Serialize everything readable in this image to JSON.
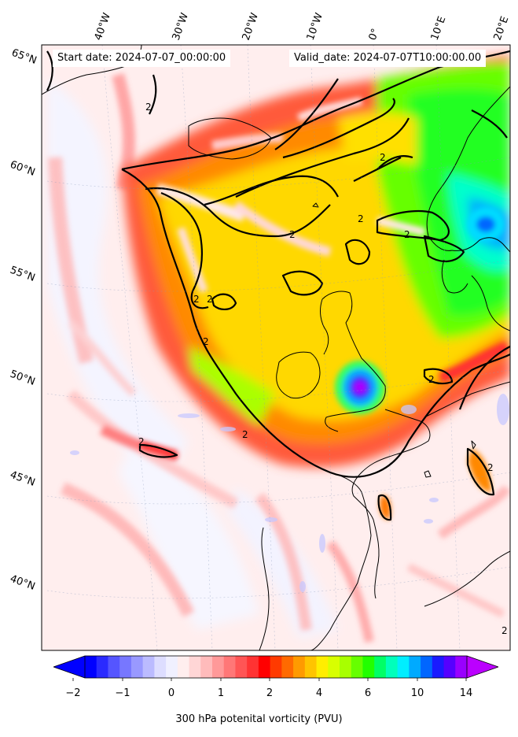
{
  "header": {
    "start_date": "Start date: 2024-07-07_00:00:00",
    "valid_date": "Valid_date: 2024-07-07T10:00:00.00"
  },
  "map": {
    "lon_labels": [
      "40°W",
      "30°W",
      "20°W",
      "10°W",
      "0°",
      "10°E",
      "20°E"
    ],
    "lat_labels": [
      "65°N",
      "60°N",
      "55°N",
      "50°N",
      "45°N",
      "40°N"
    ],
    "contour_level_label": "2"
  },
  "colorbar": {
    "title": "300 hPa potenital vorticity (PVU)",
    "tick_labels": [
      "−2",
      "−1",
      "0",
      "1",
      "2",
      "4",
      "6",
      "10",
      "14"
    ],
    "colors": [
      "#0000ff",
      "#2a2aff",
      "#5555ff",
      "#7777ff",
      "#9999ff",
      "#bbbbff",
      "#ddddff",
      "#f0f0ff",
      "#ffeeee",
      "#ffd6d6",
      "#ffbbbb",
      "#ff9999",
      "#ff7777",
      "#ff5555",
      "#ff3333",
      "#ff0000",
      "#ff3a00",
      "#ff6a00",
      "#ff9a00",
      "#ffc400",
      "#ffee00",
      "#d8ff00",
      "#a8ff00",
      "#66ff00",
      "#22ff00",
      "#00ff66",
      "#00ffbb",
      "#00eeff",
      "#00aaff",
      "#0066ff",
      "#1a1aff",
      "#5500ff",
      "#9900ff"
    ],
    "under_color": "#0000ff",
    "over_color": "#bb00ff"
  }
}
